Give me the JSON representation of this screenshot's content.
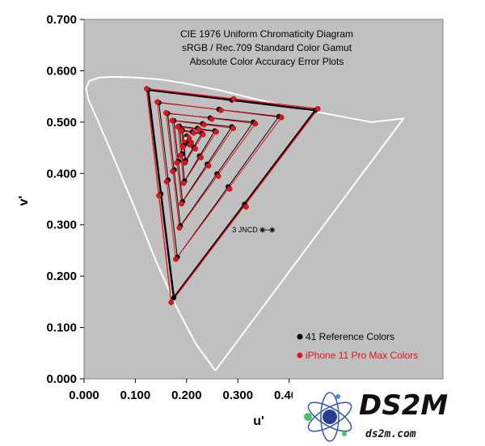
{
  "chart_data": {
    "type": "scatter",
    "title": [
      "CIE 1976 Uniform Chromaticity Diagram",
      "sRGB / Rec.709 Standard Color Gamut",
      "Absolute Color Accuracy Error Plots"
    ],
    "xlabel": "u'",
    "ylabel": "v'",
    "xlim": [
      0.0,
      0.7
    ],
    "ylim": [
      0.0,
      0.7
    ],
    "xticks": [
      "0.000",
      "0.100",
      "0.200",
      "0.300",
      "0.400"
    ],
    "yticks": [
      "0.000",
      "0.100",
      "0.200",
      "0.300",
      "0.400",
      "0.500",
      "0.600",
      "0.700"
    ],
    "grid": false,
    "legend_position": "bottom-right",
    "annotation": {
      "text": "3 JNCD",
      "u": 0.348,
      "v": 0.29
    },
    "spectral_locus": [
      [
        0.256,
        0.016
      ],
      [
        0.218,
        0.068
      ],
      [
        0.18,
        0.14
      ],
      [
        0.14,
        0.23
      ],
      [
        0.1,
        0.33
      ],
      [
        0.058,
        0.43
      ],
      [
        0.028,
        0.5
      ],
      [
        0.008,
        0.545
      ],
      [
        0.004,
        0.565
      ],
      [
        0.01,
        0.58
      ],
      [
        0.03,
        0.587
      ],
      [
        0.06,
        0.588
      ],
      [
        0.1,
        0.587
      ],
      [
        0.15,
        0.583
      ],
      [
        0.2,
        0.575
      ],
      [
        0.26,
        0.563
      ],
      [
        0.33,
        0.546
      ],
      [
        0.4,
        0.53
      ],
      [
        0.48,
        0.515
      ],
      [
        0.56,
        0.5
      ],
      [
        0.623,
        0.507
      ],
      [
        0.256,
        0.016
      ]
    ],
    "series": [
      {
        "name": "41 Reference Colors",
        "color": "#000000",
        "triangles": [
          [
            [
              0.451,
              0.523
            ],
            [
              0.125,
              0.563
            ],
            [
              0.175,
              0.158
            ]
          ],
          [
            [
              0.38,
              0.511
            ],
            [
              0.146,
              0.538
            ],
            [
              0.182,
              0.237
            ]
          ],
          [
            [
              0.33,
              0.5
            ],
            [
              0.163,
              0.517
            ],
            [
              0.188,
              0.298
            ]
          ],
          [
            [
              0.288,
              0.491
            ],
            [
              0.175,
              0.503
            ],
            [
              0.192,
              0.345
            ]
          ],
          [
            [
              0.255,
              0.483
            ],
            [
              0.186,
              0.492
            ],
            [
              0.196,
              0.385
            ]
          ],
          [
            [
              0.23,
              0.478
            ],
            [
              0.192,
              0.484
            ],
            [
              0.198,
              0.425
            ]
          ]
        ],
        "points": [
          [
            0.451,
            0.523
          ],
          [
            0.125,
            0.563
          ],
          [
            0.175,
            0.158
          ],
          [
            0.288,
            0.543
          ],
          [
            0.15,
            0.36
          ],
          [
            0.313,
            0.34
          ],
          [
            0.38,
            0.511
          ],
          [
            0.146,
            0.538
          ],
          [
            0.182,
            0.237
          ],
          [
            0.263,
            0.525
          ],
          [
            0.164,
            0.387
          ],
          [
            0.281,
            0.374
          ],
          [
            0.33,
            0.5
          ],
          [
            0.163,
            0.517
          ],
          [
            0.188,
            0.298
          ],
          [
            0.246,
            0.508
          ],
          [
            0.176,
            0.407
          ],
          [
            0.259,
            0.399
          ],
          [
            0.288,
            0.491
          ],
          [
            0.175,
            0.503
          ],
          [
            0.192,
            0.345
          ],
          [
            0.231,
            0.497
          ],
          [
            0.184,
            0.424
          ],
          [
            0.24,
            0.418
          ],
          [
            0.255,
            0.483
          ],
          [
            0.186,
            0.492
          ],
          [
            0.196,
            0.385
          ],
          [
            0.221,
            0.488
          ],
          [
            0.191,
            0.438
          ],
          [
            0.225,
            0.434
          ],
          [
            0.23,
            0.478
          ],
          [
            0.192,
            0.484
          ],
          [
            0.198,
            0.425
          ],
          [
            0.211,
            0.481
          ],
          [
            0.195,
            0.455
          ],
          [
            0.214,
            0.451
          ],
          [
            0.202,
            0.47
          ],
          [
            0.198,
            0.466
          ],
          [
            0.206,
            0.462
          ],
          [
            0.2,
            0.473
          ],
          [
            0.203,
            0.459
          ]
        ]
      },
      {
        "name": "iPhone 11 Pro Max Colors",
        "color": "#e0141e",
        "triangles": [
          [
            [
              0.456,
              0.526
            ],
            [
              0.122,
              0.565
            ],
            [
              0.17,
              0.149
            ]
          ],
          [
            [
              0.385,
              0.509
            ],
            [
              0.143,
              0.539
            ],
            [
              0.179,
              0.233
            ]
          ],
          [
            [
              0.334,
              0.497
            ],
            [
              0.16,
              0.518
            ],
            [
              0.186,
              0.294
            ]
          ],
          [
            [
              0.291,
              0.488
            ],
            [
              0.172,
              0.503
            ],
            [
              0.19,
              0.341
            ]
          ],
          [
            [
              0.258,
              0.481
            ],
            [
              0.183,
              0.491
            ],
            [
              0.194,
              0.381
            ]
          ],
          [
            [
              0.232,
              0.476
            ],
            [
              0.19,
              0.483
            ],
            [
              0.197,
              0.421
            ]
          ]
        ],
        "points": [
          [
            0.456,
            0.526
          ],
          [
            0.122,
            0.565
          ],
          [
            0.17,
            0.149
          ],
          [
            0.292,
            0.545
          ],
          [
            0.146,
            0.357
          ],
          [
            0.316,
            0.335
          ],
          [
            0.385,
            0.509
          ],
          [
            0.143,
            0.539
          ],
          [
            0.179,
            0.233
          ],
          [
            0.267,
            0.523
          ],
          [
            0.161,
            0.384
          ],
          [
            0.284,
            0.37
          ],
          [
            0.334,
            0.497
          ],
          [
            0.16,
            0.518
          ],
          [
            0.186,
            0.294
          ],
          [
            0.249,
            0.506
          ],
          [
            0.173,
            0.404
          ],
          [
            0.262,
            0.395
          ],
          [
            0.291,
            0.488
          ],
          [
            0.172,
            0.503
          ],
          [
            0.19,
            0.341
          ],
          [
            0.234,
            0.495
          ],
          [
            0.181,
            0.421
          ],
          [
            0.243,
            0.415
          ],
          [
            0.258,
            0.481
          ],
          [
            0.183,
            0.491
          ],
          [
            0.194,
            0.381
          ],
          [
            0.224,
            0.486
          ],
          [
            0.188,
            0.435
          ],
          [
            0.228,
            0.431
          ],
          [
            0.232,
            0.476
          ],
          [
            0.19,
            0.483
          ],
          [
            0.197,
            0.421
          ],
          [
            0.214,
            0.479
          ],
          [
            0.193,
            0.452
          ],
          [
            0.217,
            0.448
          ],
          [
            0.205,
            0.468
          ],
          [
            0.196,
            0.464
          ],
          [
            0.209,
            0.46
          ],
          [
            0.203,
            0.471
          ],
          [
            0.206,
            0.456
          ]
        ]
      }
    ]
  },
  "watermark": {
    "logo_text": "DS2M",
    "url_text": "ds2m.com",
    "logo_colors": {
      "orbit": "#3a5fa8",
      "atom_core": "#2a3f8f",
      "dot_green": "#4cc36a",
      "dot_blue": "#3a8fd8"
    }
  },
  "colors": {
    "plot_bg": "#c0c0c0",
    "locus": "#ffffff"
  }
}
